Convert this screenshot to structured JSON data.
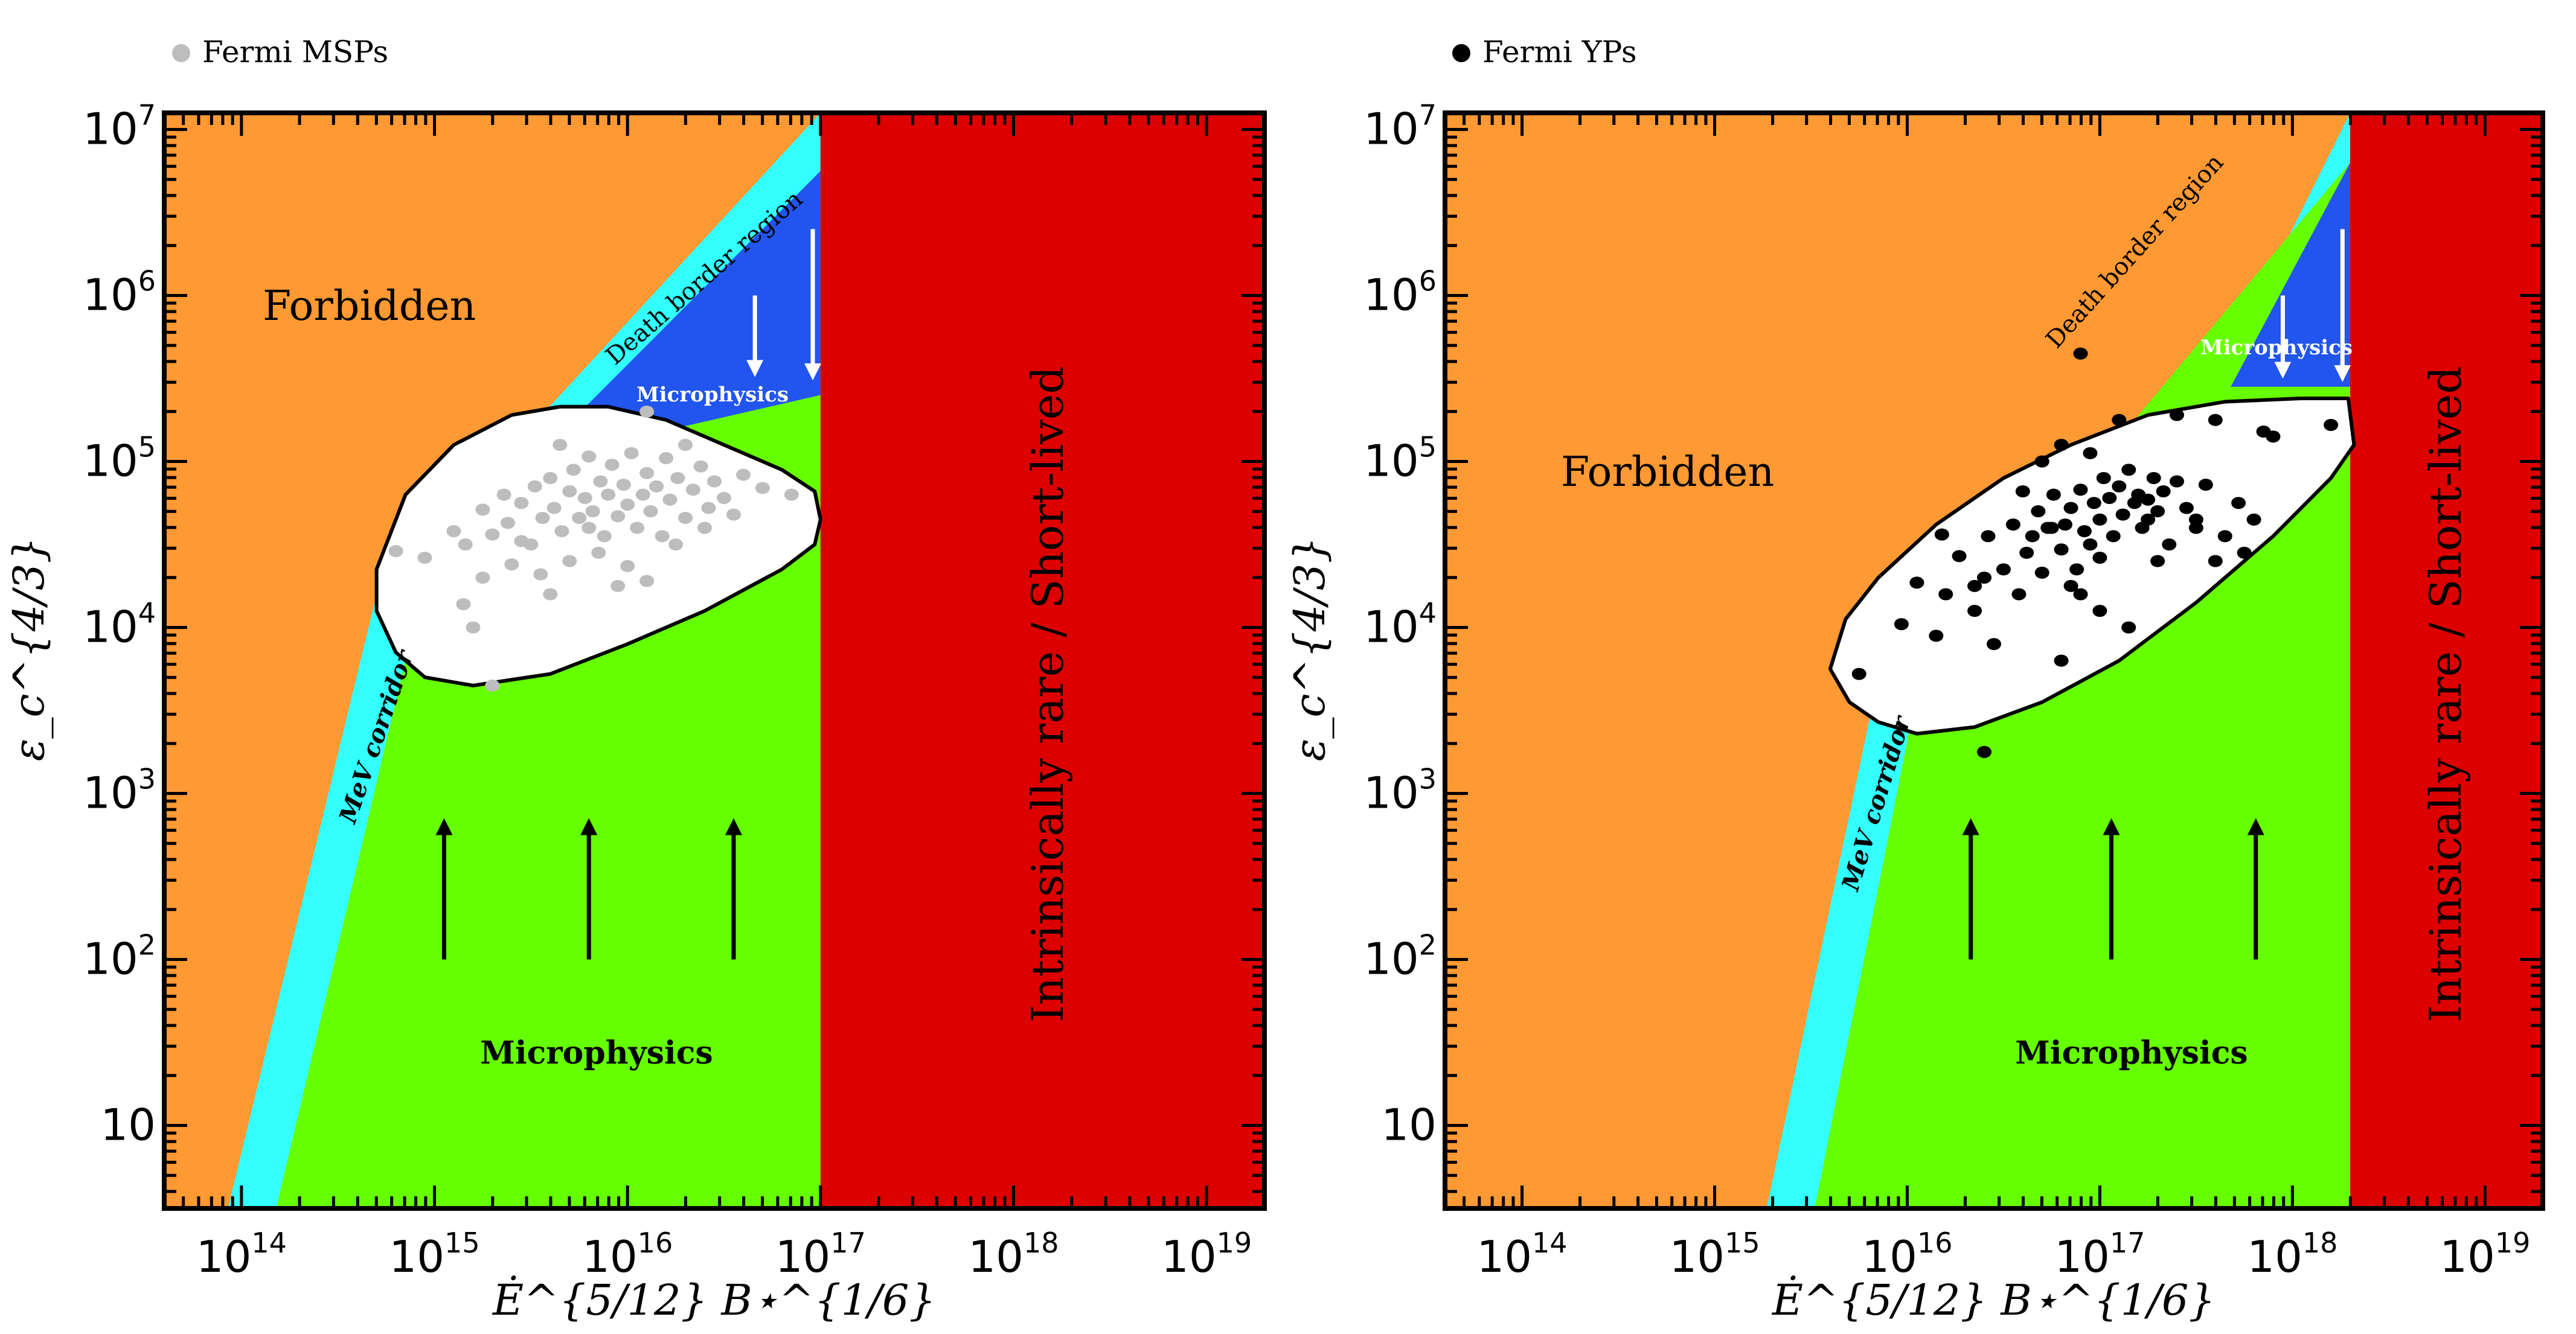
{
  "colors": {
    "forbidden": "#FF9933",
    "corridor": "#33FFFF",
    "microphysics_green": "#66FF00",
    "microphysics_blue": "#2255EE",
    "shortlived": "#DD0000",
    "contour_fill": "#FFFFFF",
    "msp": "#BDBDBD",
    "yp": "#000000"
  },
  "chart_data": [
    {
      "type": "scatter",
      "panel": "left",
      "legend": "Fermi MSPs",
      "xlabel": "Ė^{5/12} B⋆^{1/6}",
      "ylabel": "ε_c^{4/3}",
      "x_scale": "log10",
      "y_scale": "log10",
      "xlim_log10": [
        13.6,
        19.3
      ],
      "ylim_log10": [
        0.5,
        7.1
      ],
      "x_ticks": [
        {
          "v": 14,
          "t": "10",
          "s": "14"
        },
        {
          "v": 15,
          "t": "10",
          "s": "15"
        },
        {
          "v": 16,
          "t": "10",
          "s": "16"
        },
        {
          "v": 17,
          "t": "10",
          "s": "17"
        },
        {
          "v": 18,
          "t": "10",
          "s": "18"
        },
        {
          "v": 19,
          "t": "10",
          "s": "19"
        }
      ],
      "y_ticks": [
        {
          "v": 1,
          "t": "10",
          "s": ""
        },
        {
          "v": 2,
          "t": "10",
          "s": "2"
        },
        {
          "v": 3,
          "t": "10",
          "s": "3"
        },
        {
          "v": 4,
          "t": "10",
          "s": "4"
        },
        {
          "v": 5,
          "t": "10",
          "s": "5"
        },
        {
          "v": 6,
          "t": "10",
          "s": "6"
        },
        {
          "v": 7,
          "t": "10",
          "s": "7"
        }
      ],
      "regions": {
        "corridor_left": [
          [
            13.93,
            0.5
          ],
          [
            14.7,
            4.2
          ],
          [
            17.0,
            7.1
          ]
        ],
        "corridor_right": [
          [
            14.18,
            0.5
          ],
          [
            14.89,
            4.0
          ],
          [
            17.0,
            6.75
          ]
        ],
        "blue_bottom": [
          [
            15.5,
            5.0
          ],
          [
            17.0,
            5.4
          ]
        ],
        "shortlived_from_log10": 17.0
      },
      "region_labels": {
        "forbidden": "Forbidden",
        "death_border": "Death border region",
        "microphysics_top": "Microphysics",
        "microphysics_bottom": "Microphysics",
        "mev_corridor": "MeV corridor",
        "shortlived": "Intrinsically rare  / Short-lived"
      },
      "up_arrows_x": [
        15.05,
        15.8,
        16.55
      ],
      "up_arrows_y": [
        2.0,
        2.8
      ],
      "down_arrows": [
        [
          16.66,
          6.0,
          5.56
        ],
        [
          16.96,
          6.4,
          5.54
        ]
      ],
      "contour": [
        [
          14.7,
          4.35
        ],
        [
          14.85,
          4.8
        ],
        [
          15.1,
          5.1
        ],
        [
          15.4,
          5.28
        ],
        [
          15.65,
          5.33
        ],
        [
          15.9,
          5.33
        ],
        [
          16.2,
          5.25
        ],
        [
          16.5,
          5.1
        ],
        [
          16.8,
          4.95
        ],
        [
          16.97,
          4.82
        ],
        [
          17.0,
          4.65
        ],
        [
          16.97,
          4.5
        ],
        [
          16.8,
          4.35
        ],
        [
          16.4,
          4.1
        ],
        [
          16.0,
          3.9
        ],
        [
          15.6,
          3.72
        ],
        [
          15.2,
          3.65
        ],
        [
          14.95,
          3.7
        ],
        [
          14.8,
          3.85
        ],
        [
          14.7,
          4.1
        ],
        [
          14.7,
          4.35
        ]
      ],
      "points": [
        [
          14.8,
          4.46
        ],
        [
          14.95,
          4.42
        ],
        [
          15.1,
          4.58
        ],
        [
          15.16,
          4.5
        ],
        [
          15.25,
          4.71
        ],
        [
          15.3,
          4.56
        ],
        [
          15.36,
          4.8
        ],
        [
          15.38,
          4.63
        ],
        [
          15.45,
          4.75
        ],
        [
          15.5,
          4.5
        ],
        [
          15.52,
          4.85
        ],
        [
          15.56,
          4.66
        ],
        [
          15.6,
          4.9
        ],
        [
          15.62,
          4.72
        ],
        [
          15.66,
          4.58
        ],
        [
          15.7,
          4.82
        ],
        [
          15.72,
          4.95
        ],
        [
          15.75,
          4.66
        ],
        [
          15.78,
          4.78
        ],
        [
          15.8,
          5.03
        ],
        [
          15.82,
          4.7
        ],
        [
          15.86,
          4.88
        ],
        [
          15.88,
          4.55
        ],
        [
          15.9,
          4.8
        ],
        [
          15.92,
          4.98
        ],
        [
          15.95,
          4.67
        ],
        [
          15.98,
          4.86
        ],
        [
          16.0,
          4.74
        ],
        [
          16.02,
          5.05
        ],
        [
          16.05,
          4.6
        ],
        [
          16.08,
          4.8
        ],
        [
          16.1,
          4.93
        ],
        [
          16.12,
          4.7
        ],
        [
          16.15,
          4.85
        ],
        [
          16.18,
          4.55
        ],
        [
          16.2,
          5.02
        ],
        [
          16.22,
          4.77
        ],
        [
          16.26,
          4.9
        ],
        [
          16.3,
          4.66
        ],
        [
          16.34,
          4.83
        ],
        [
          16.38,
          4.97
        ],
        [
          16.42,
          4.72
        ],
        [
          16.45,
          4.88
        ],
        [
          16.5,
          4.78
        ],
        [
          16.55,
          4.68
        ],
        [
          16.6,
          4.92
        ],
        [
          16.7,
          4.84
        ],
        [
          16.85,
          4.8
        ],
        [
          15.4,
          4.38
        ],
        [
          15.55,
          4.32
        ],
        [
          15.7,
          4.4
        ],
        [
          15.85,
          4.45
        ],
        [
          16.0,
          4.37
        ],
        [
          16.1,
          4.28
        ],
        [
          15.25,
          4.3
        ],
        [
          15.15,
          4.14
        ],
        [
          15.6,
          4.2
        ],
        [
          15.95,
          4.25
        ],
        [
          16.25,
          4.5
        ],
        [
          16.4,
          4.6
        ],
        [
          15.45,
          4.52
        ],
        [
          15.8,
          4.6
        ],
        [
          15.3,
          3.65
        ],
        [
          16.3,
          5.1
        ],
        [
          15.65,
          5.1
        ],
        [
          16.1,
          5.3
        ],
        [
          15.2,
          4.0
        ]
      ]
    },
    {
      "type": "scatter",
      "panel": "right",
      "legend": "Fermi YPs",
      "xlabel": "Ė^{5/12} B⋆^{1/6}",
      "ylabel": "ε_c^{4/3}",
      "x_scale": "log10",
      "y_scale": "log10",
      "xlim_log10": [
        13.6,
        19.3
      ],
      "ylim_log10": [
        0.5,
        7.1
      ],
      "x_ticks": [
        {
          "v": 14,
          "t": "10",
          "s": "14"
        },
        {
          "v": 15,
          "t": "10",
          "s": "15"
        },
        {
          "v": 16,
          "t": "10",
          "s": "16"
        },
        {
          "v": 17,
          "t": "10",
          "s": "17"
        },
        {
          "v": 18,
          "t": "10",
          "s": "18"
        },
        {
          "v": 19,
          "t": "10",
          "s": "19"
        }
      ],
      "y_ticks": [
        {
          "v": 1,
          "t": "10",
          "s": ""
        },
        {
          "v": 2,
          "t": "10",
          "s": "2"
        },
        {
          "v": 3,
          "t": "10",
          "s": "3"
        },
        {
          "v": 4,
          "t": "10",
          "s": "4"
        },
        {
          "v": 5,
          "t": "10",
          "s": "5"
        },
        {
          "v": 6,
          "t": "10",
          "s": "6"
        },
        {
          "v": 7,
          "t": "10",
          "s": "7"
        }
      ],
      "regions": {
        "corridor_left": [
          [
            15.27,
            0.5
          ],
          [
            15.85,
            3.7
          ],
          [
            17.7,
            5.7
          ],
          [
            18.3,
            7.1
          ]
        ],
        "corridor_right": [
          [
            15.52,
            0.5
          ],
          [
            16.1,
            3.9
          ],
          [
            17.0,
            5.0
          ],
          [
            18.3,
            6.8
          ]
        ],
        "blue_bottom": [
          [
            17.68,
            5.45
          ],
          [
            18.3,
            5.45
          ]
        ],
        "shortlived_from_log10": 18.3
      },
      "region_labels": {
        "forbidden": "Forbidden",
        "death_border": "Death border region",
        "microphysics_top": "Microphysics",
        "microphysics_bottom": "Microphysics",
        "mev_corridor": "MeV corridor",
        "shortlived": "Intrinsically rare  / Short-lived"
      },
      "up_arrows_x": [
        16.33,
        17.06,
        17.81
      ],
      "up_arrows_y": [
        2.0,
        2.8
      ],
      "down_arrows": [
        [
          17.95,
          6.0,
          5.55
        ],
        [
          18.26,
          6.4,
          5.53
        ]
      ],
      "contour": [
        [
          15.6,
          3.75
        ],
        [
          15.68,
          4.05
        ],
        [
          15.85,
          4.3
        ],
        [
          16.15,
          4.62
        ],
        [
          16.5,
          4.9
        ],
        [
          16.85,
          5.1
        ],
        [
          17.25,
          5.28
        ],
        [
          17.65,
          5.36
        ],
        [
          18.05,
          5.38
        ],
        [
          18.29,
          5.38
        ],
        [
          18.32,
          5.1
        ],
        [
          18.2,
          4.9
        ],
        [
          17.9,
          4.55
        ],
        [
          17.5,
          4.15
        ],
        [
          17.1,
          3.8
        ],
        [
          16.7,
          3.55
        ],
        [
          16.35,
          3.4
        ],
        [
          16.05,
          3.36
        ],
        [
          15.85,
          3.43
        ],
        [
          15.7,
          3.55
        ],
        [
          15.6,
          3.75
        ]
      ],
      "points": [
        [
          15.75,
          3.72
        ],
        [
          15.97,
          4.02
        ],
        [
          16.05,
          4.27
        ],
        [
          16.15,
          3.95
        ],
        [
          16.18,
          4.56
        ],
        [
          16.2,
          4.2
        ],
        [
          16.27,
          4.43
        ],
        [
          16.35,
          4.1
        ],
        [
          16.42,
          4.55
        ],
        [
          16.5,
          4.35
        ],
        [
          16.55,
          4.62
        ],
        [
          16.6,
          4.82
        ],
        [
          16.62,
          4.45
        ],
        [
          16.65,
          4.55
        ],
        [
          16.68,
          4.7
        ],
        [
          16.7,
          4.33
        ],
        [
          16.73,
          4.6
        ],
        [
          16.76,
          4.8
        ],
        [
          16.8,
          4.47
        ],
        [
          16.82,
          4.62
        ],
        [
          16.85,
          4.72
        ],
        [
          16.88,
          4.35
        ],
        [
          16.9,
          4.83
        ],
        [
          16.92,
          4.58
        ],
        [
          16.95,
          4.5
        ],
        [
          16.97,
          4.75
        ],
        [
          17.0,
          4.65
        ],
        [
          17.02,
          4.9
        ],
        [
          17.05,
          4.78
        ],
        [
          17.07,
          4.55
        ],
        [
          17.1,
          4.85
        ],
        [
          17.12,
          4.68
        ],
        [
          17.15,
          4.95
        ],
        [
          17.18,
          4.75
        ],
        [
          17.2,
          4.8
        ],
        [
          17.22,
          4.6
        ],
        [
          17.25,
          4.77
        ],
        [
          17.28,
          4.9
        ],
        [
          17.3,
          4.7
        ],
        [
          17.33,
          4.82
        ],
        [
          17.36,
          4.5
        ],
        [
          17.4,
          4.88
        ],
        [
          17.45,
          4.72
        ],
        [
          17.5,
          4.65
        ],
        [
          17.55,
          4.86
        ],
        [
          17.6,
          4.4
        ],
        [
          17.65,
          4.55
        ],
        [
          17.72,
          4.75
        ],
        [
          17.8,
          4.65
        ],
        [
          17.85,
          5.18
        ],
        [
          17.9,
          5.15
        ],
        [
          18.2,
          5.22
        ],
        [
          17.6,
          5.25
        ],
        [
          17.4,
          5.28
        ],
        [
          17.1,
          5.25
        ],
        [
          16.95,
          5.05
        ],
        [
          16.8,
          5.1
        ],
        [
          16.7,
          5.0
        ],
        [
          16.4,
          4.3
        ],
        [
          16.35,
          4.25
        ],
        [
          16.58,
          4.2
        ],
        [
          16.85,
          4.25
        ],
        [
          17.0,
          4.1
        ],
        [
          16.45,
          3.9
        ],
        [
          16.8,
          3.8
        ],
        [
          16.4,
          3.25
        ],
        [
          17.15,
          4.0
        ],
        [
          17.3,
          4.4
        ],
        [
          17.5,
          4.6
        ],
        [
          17.75,
          4.45
        ],
        [
          16.9,
          4.2
        ],
        [
          17.0,
          4.42
        ],
        [
          16.75,
          4.6
        ],
        [
          16.9,
          5.65
        ],
        [
          17.25,
          4.65
        ]
      ]
    }
  ]
}
